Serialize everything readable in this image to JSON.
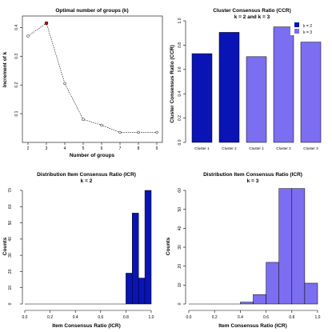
{
  "colors": {
    "dark_blue": "#0a14b4",
    "light_blue": "#7b6ef0",
    "point_red": "#cc0000"
  },
  "chart_data": [
    {
      "type": "line",
      "title": "Optimal number of groups (k)",
      "xlabel": "Number of groups",
      "ylabel": "Increment of k",
      "xlim": [
        2,
        9
      ],
      "ylim": [
        0,
        0.44
      ],
      "x_ticks": [
        "2",
        "3",
        "4",
        "5",
        "6",
        "7",
        "8",
        "9"
      ],
      "y_ticks": [
        "0.1",
        "0.2",
        "0.3",
        "0.4"
      ],
      "x": [
        2,
        3,
        4,
        5,
        6,
        7,
        8,
        9
      ],
      "y": [
        0.37,
        0.415,
        0.205,
        0.08,
        0.06,
        0.035,
        0.035,
        0.035
      ],
      "highlight_x": 3,
      "grid": false
    },
    {
      "type": "bar",
      "title": "Cluster Consensus Ratio (CCR)",
      "subtitle": "k = 2 and k = 3",
      "ylabel": "Cluster Consensus Ratio (CCR)",
      "categories": [
        "Cluster 1",
        "Cluster 2",
        "Cluster 1",
        "Cluster 2",
        "Cluster 3"
      ],
      "values": [
        0.73,
        0.905,
        0.705,
        0.95,
        0.825
      ],
      "bar_series": [
        "k = 2",
        "k = 2",
        "k = 3",
        "k = 3",
        "k = 3"
      ],
      "y_ticks": [
        "0.0",
        "0.2",
        "0.4",
        "0.6",
        "0.8",
        "1.0"
      ],
      "ylim": [
        0,
        1.0
      ],
      "legend": {
        "position": "top-right",
        "entries": [
          "k = 2",
          "k = 3"
        ]
      },
      "grid": false
    },
    {
      "type": "bar",
      "title": "Distribution Item Consensus Ratio (ICR)",
      "subtitle": "k = 2",
      "xlabel": "Item Consensus Ratio (ICR)",
      "ylabel": "Counts",
      "bin_edges": [
        0.8,
        0.85,
        0.9,
        0.95,
        1.0
      ],
      "values": [
        19,
        56,
        16,
        70
      ],
      "xlim": [
        0,
        1.0
      ],
      "ylim": [
        0,
        70
      ],
      "x_ticks": [
        "0.0",
        "0.2",
        "0.4",
        "0.6",
        "0.8",
        "1.0"
      ],
      "y_ticks": [
        "0",
        "10",
        "20",
        "30",
        "40",
        "50",
        "60",
        "70"
      ],
      "grid": false
    },
    {
      "type": "bar",
      "title": "Distribution Item Consensus Ratio (ICR)",
      "subtitle": "k = 3",
      "xlabel": "Item Consensus Ratio (ICR)",
      "ylabel": "Counts",
      "bin_edges": [
        0.4,
        0.5,
        0.6,
        0.7,
        0.8,
        0.9,
        1.0
      ],
      "values": [
        1,
        5,
        22,
        61,
        61,
        11
      ],
      "xlim": [
        0,
        1.0
      ],
      "ylim": [
        0,
        60
      ],
      "x_ticks": [
        "0.0",
        "0.2",
        "0.4",
        "0.6",
        "0.8",
        "1.0"
      ],
      "y_ticks": [
        "0",
        "10",
        "20",
        "30",
        "40",
        "50",
        "60"
      ],
      "grid": false
    }
  ]
}
